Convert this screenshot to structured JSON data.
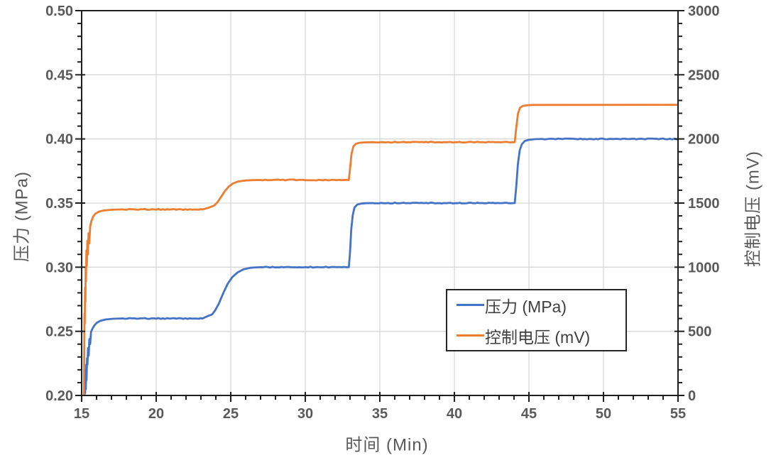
{
  "chart_data": {
    "type": "line",
    "title": "",
    "xlabel": "时间 (Min)",
    "ylabel_left": "压力 (MPa)",
    "ylabel_right": "控制电压 (mV)",
    "x_axis": {
      "min": 15,
      "max": 55,
      "major_step": 5,
      "minor_step": 1
    },
    "y_left": {
      "min": 0.2,
      "max": 0.5,
      "major_step": 0.05,
      "minor_step": 0.01,
      "decimals": 2
    },
    "y_right": {
      "min": 0,
      "max": 3000,
      "major_step": 500,
      "minor_step": 100
    },
    "grid": true,
    "legend_position": "inside-right",
    "series": [
      {
        "name": "压力 (MPa)",
        "axis": "left",
        "color": "#4472C4",
        "points": [
          [
            15.2,
            0.2
          ],
          [
            15.22,
            0.213
          ],
          [
            15.24,
            0.202
          ],
          [
            15.26,
            0.22
          ],
          [
            15.28,
            0.205
          ],
          [
            15.31,
            0.224
          ],
          [
            15.33,
            0.212
          ],
          [
            15.36,
            0.229
          ],
          [
            15.39,
            0.224
          ],
          [
            15.43,
            0.237
          ],
          [
            15.47,
            0.231
          ],
          [
            15.52,
            0.244
          ],
          [
            15.57,
            0.24
          ],
          [
            15.63,
            0.2495
          ],
          [
            15.72,
            0.252
          ],
          [
            15.85,
            0.2545
          ],
          [
            16.0,
            0.2565
          ],
          [
            16.25,
            0.2582
          ],
          [
            16.6,
            0.2592
          ],
          [
            17.1,
            0.2598
          ],
          [
            17.6,
            0.26
          ],
          [
            23.1,
            0.26
          ],
          [
            23.45,
            0.2618
          ],
          [
            23.75,
            0.2632
          ],
          [
            23.95,
            0.2662
          ],
          [
            24.2,
            0.2715
          ],
          [
            24.5,
            0.2798
          ],
          [
            24.8,
            0.2872
          ],
          [
            25.1,
            0.2922
          ],
          [
            25.45,
            0.2958
          ],
          [
            25.85,
            0.2983
          ],
          [
            26.3,
            0.2995
          ],
          [
            26.8,
            0.2999
          ],
          [
            27.2,
            0.3
          ],
          [
            32.92,
            0.3
          ],
          [
            33.0,
            0.3115
          ],
          [
            33.08,
            0.329
          ],
          [
            33.18,
            0.3405
          ],
          [
            33.3,
            0.3465
          ],
          [
            33.48,
            0.3488
          ],
          [
            33.75,
            0.3496
          ],
          [
            34.1,
            0.3499
          ],
          [
            34.5,
            0.35
          ],
          [
            44.05,
            0.35
          ],
          [
            44.15,
            0.3625
          ],
          [
            44.26,
            0.3805
          ],
          [
            44.38,
            0.391
          ],
          [
            44.52,
            0.3958
          ],
          [
            44.72,
            0.3983
          ],
          [
            45.0,
            0.3993
          ],
          [
            45.4,
            0.3998
          ],
          [
            45.9,
            0.4
          ],
          [
            55.0,
            0.4
          ]
        ]
      },
      {
        "name": "控制电压 (mV)",
        "axis": "right",
        "color": "#ED7D31",
        "points": [
          [
            15.15,
            0
          ],
          [
            15.17,
            310
          ],
          [
            15.19,
            640
          ],
          [
            15.21,
            560
          ],
          [
            15.23,
            840
          ],
          [
            15.25,
            730
          ],
          [
            15.27,
            990
          ],
          [
            15.29,
            890
          ],
          [
            15.32,
            1130
          ],
          [
            15.35,
            1010
          ],
          [
            15.38,
            1205
          ],
          [
            15.42,
            1100
          ],
          [
            15.46,
            1265
          ],
          [
            15.51,
            1185
          ],
          [
            15.57,
            1315
          ],
          [
            15.65,
            1360
          ],
          [
            15.77,
            1395
          ],
          [
            15.93,
            1418
          ],
          [
            16.18,
            1434
          ],
          [
            16.55,
            1443
          ],
          [
            17.05,
            1448
          ],
          [
            17.6,
            1450
          ],
          [
            23.1,
            1450
          ],
          [
            23.5,
            1463
          ],
          [
            23.88,
            1480
          ],
          [
            24.1,
            1505
          ],
          [
            24.35,
            1548
          ],
          [
            24.6,
            1592
          ],
          [
            24.85,
            1627
          ],
          [
            25.12,
            1651
          ],
          [
            25.5,
            1668
          ],
          [
            26.0,
            1676
          ],
          [
            26.5,
            1679
          ],
          [
            27.0,
            1680
          ],
          [
            32.92,
            1680
          ],
          [
            33.0,
            1765
          ],
          [
            33.1,
            1882
          ],
          [
            33.22,
            1940
          ],
          [
            33.38,
            1961
          ],
          [
            33.62,
            1970
          ],
          [
            34.0,
            1973
          ],
          [
            34.5,
            1975
          ],
          [
            44.05,
            1975
          ],
          [
            44.15,
            2085
          ],
          [
            44.27,
            2200
          ],
          [
            44.4,
            2243
          ],
          [
            44.6,
            2258
          ],
          [
            44.9,
            2263
          ],
          [
            45.3,
            2265
          ],
          [
            55.0,
            2266
          ]
        ]
      }
    ],
    "colors": {
      "grid": "#D9D9D9",
      "axis_line": "#1f1f1f",
      "tick_label": "#595959",
      "axis_title": "#595959",
      "legend_text": "#3f3f3f",
      "background": "#FFFFFF"
    }
  }
}
